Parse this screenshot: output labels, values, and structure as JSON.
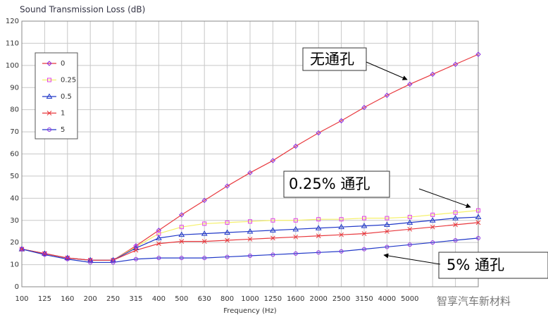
{
  "chart_data": {
    "type": "line",
    "title": "Sound Transmission  Loss (dB)",
    "x_label": "Frequency (Hz)",
    "categories": [
      "100",
      "125",
      "160",
      "200",
      "250",
      "315",
      "400",
      "500",
      "630",
      "800",
      "1000",
      "1250",
      "1600",
      "2000",
      "2500",
      "3150",
      "4000",
      "5000",
      null,
      null,
      null
    ],
    "ylim": [
      0,
      120
    ],
    "yticks": [
      0,
      10,
      20,
      30,
      40,
      50,
      60,
      70,
      80,
      90,
      100,
      110,
      120
    ],
    "grid": true,
    "series": [
      {
        "name": "0",
        "color": "#e8383d",
        "marker": "diamond",
        "marker_color": "#8a2be2",
        "values": [
          17,
          15,
          13,
          12,
          12,
          18.5,
          25.5,
          32.5,
          39,
          45.5,
          51.5,
          57,
          63.5,
          69.5,
          75,
          81,
          86.5,
          91.5,
          96,
          100.5,
          105
        ]
      },
      {
        "name": "0.25",
        "color": "#f5f06a",
        "marker": "square",
        "marker_color": "#e040e0",
        "values": [
          17,
          15,
          13,
          12,
          12,
          18,
          24,
          27,
          28.5,
          29,
          29.5,
          30,
          30,
          30.5,
          30.5,
          31,
          31,
          31.5,
          32.5,
          33.5,
          34.5
        ]
      },
      {
        "name": "0.5",
        "color": "#2038c8",
        "marker": "triangle",
        "marker_color": "#2038c8",
        "values": [
          17,
          15,
          13,
          12,
          12,
          17.5,
          22,
          23.5,
          24,
          24.5,
          25,
          25.5,
          26,
          26.5,
          27,
          27.5,
          28,
          29,
          30,
          31,
          31.5
        ]
      },
      {
        "name": "1",
        "color": "#e8383d",
        "marker": "x",
        "marker_color": "#e8383d",
        "values": [
          17,
          15,
          13,
          12,
          12,
          16.5,
          19.5,
          20.5,
          20.5,
          21,
          21.5,
          22,
          22.5,
          23,
          23.5,
          24,
          25,
          26,
          27,
          28,
          29
        ]
      },
      {
        "name": "5",
        "color": "#2038c8",
        "marker": "circle",
        "marker_color": "#8a2be2",
        "values": [
          17,
          14.5,
          12.5,
          11,
          11,
          12.5,
          13,
          13,
          13,
          13.5,
          14,
          14.5,
          15,
          15.5,
          16,
          17,
          18,
          19,
          20,
          21,
          22
        ]
      }
    ],
    "annotations": [
      "无通孔",
      "0.25% 通孔",
      "5% 通孔"
    ],
    "watermark": "智享汽车新材料"
  }
}
